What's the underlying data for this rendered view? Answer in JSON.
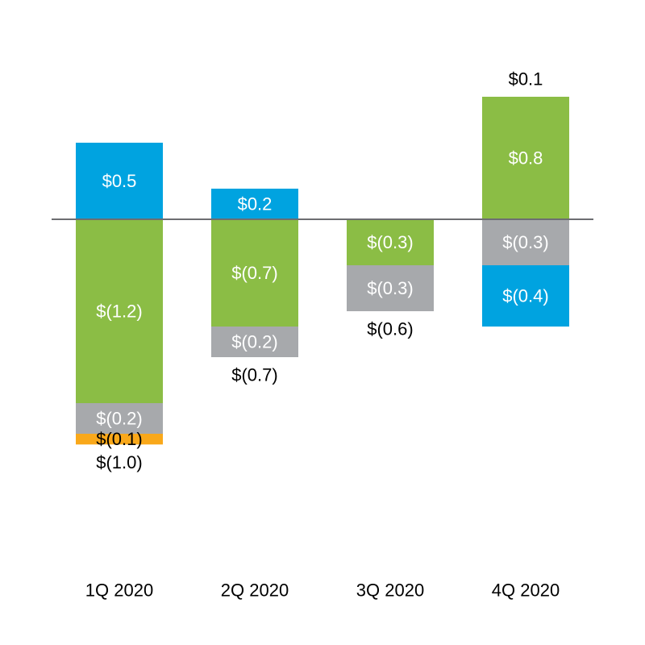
{
  "chart_data": {
    "type": "bar",
    "stacked": true,
    "categories": [
      "1Q 2020",
      "2Q 2020",
      "3Q 2020",
      "4Q 2020"
    ],
    "ylim": [
      -1.25,
      0.7
    ],
    "bars": [
      {
        "category": "1Q 2020",
        "total": -1.0,
        "total_label": "$(1.0)",
        "segments": [
          {
            "value": 0.5,
            "label": "$0.5",
            "color": "#00a3e0",
            "label_color": "#ffffff"
          },
          {
            "value": -1.2,
            "label": "$(1.2)",
            "color": "#8bbd45",
            "label_color": "#ffffff"
          },
          {
            "value": -0.2,
            "label": "$(0.2)",
            "color": "#a7a9ac",
            "label_color": "#ffffff"
          },
          {
            "value": -0.07,
            "label": "$(0.1)",
            "color": "#f9a81a",
            "label_color": "#000000"
          }
        ]
      },
      {
        "category": "2Q 2020",
        "total": -0.7,
        "total_label": "$(0.7)",
        "segments": [
          {
            "value": 0.2,
            "label": "$0.2",
            "color": "#00a3e0",
            "label_color": "#ffffff"
          },
          {
            "value": -0.7,
            "label": "$(0.7)",
            "color": "#8bbd45",
            "label_color": "#ffffff"
          },
          {
            "value": -0.2,
            "label": "$(0.2)",
            "color": "#a7a9ac",
            "label_color": "#ffffff"
          }
        ]
      },
      {
        "category": "3Q 2020",
        "total": -0.6,
        "total_label": "$(0.6)",
        "segments": [
          {
            "value": -0.3,
            "label": "$(0.3)",
            "color": "#8bbd45",
            "label_color": "#ffffff"
          },
          {
            "value": -0.3,
            "label": "$(0.3)",
            "color": "#a7a9ac",
            "label_color": "#ffffff"
          }
        ]
      },
      {
        "category": "4Q 2020",
        "total": 0.1,
        "total_label": "$0.1",
        "segments": [
          {
            "value": 0.8,
            "label": "$0.8",
            "color": "#8bbd45",
            "label_color": "#ffffff"
          },
          {
            "value": -0.3,
            "label": "$(0.3)",
            "color": "#a7a9ac",
            "label_color": "#ffffff"
          },
          {
            "value": -0.4,
            "label": "$(0.4)",
            "color": "#00a3e0",
            "label_color": "#ffffff"
          }
        ]
      }
    ],
    "zero_line_color": "#6d6e71",
    "grid": false,
    "legend": "none"
  }
}
